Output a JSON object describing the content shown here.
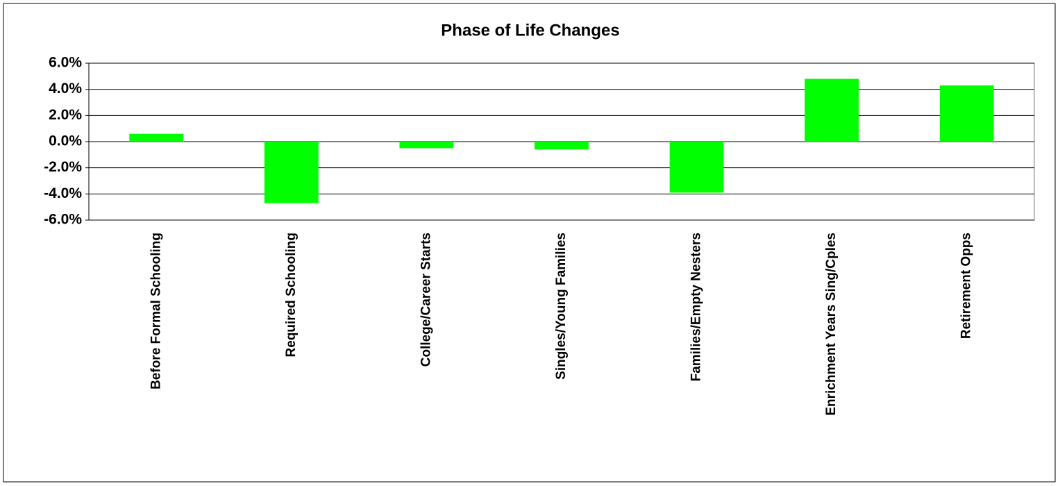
{
  "chart_data": {
    "type": "bar",
    "title": "Phase of Life Changes",
    "categories": [
      "Before Formal Schooling",
      "Required Schooling",
      "College/Career Starts",
      "Singles/Young Families",
      "Families/Empty Nesters",
      "Enrichment Years Sing/Cples",
      "Retirement Opps"
    ],
    "values": [
      0.6,
      -4.7,
      -0.5,
      -0.6,
      -3.9,
      4.8,
      4.3
    ],
    "color": "#00ff00",
    "ylim": [
      -6,
      6
    ],
    "yticks": [
      {
        "value": -6,
        "label": "-6.0%"
      },
      {
        "value": -4,
        "label": "-4.0%"
      },
      {
        "value": -2,
        "label": "-2.0%"
      },
      {
        "value": 0,
        "label": "0.0%"
      },
      {
        "value": 2,
        "label": "2.0%"
      },
      {
        "value": 4,
        "label": "4.0%"
      },
      {
        "value": 6,
        "label": "6.0%"
      }
    ],
    "grid": true
  }
}
